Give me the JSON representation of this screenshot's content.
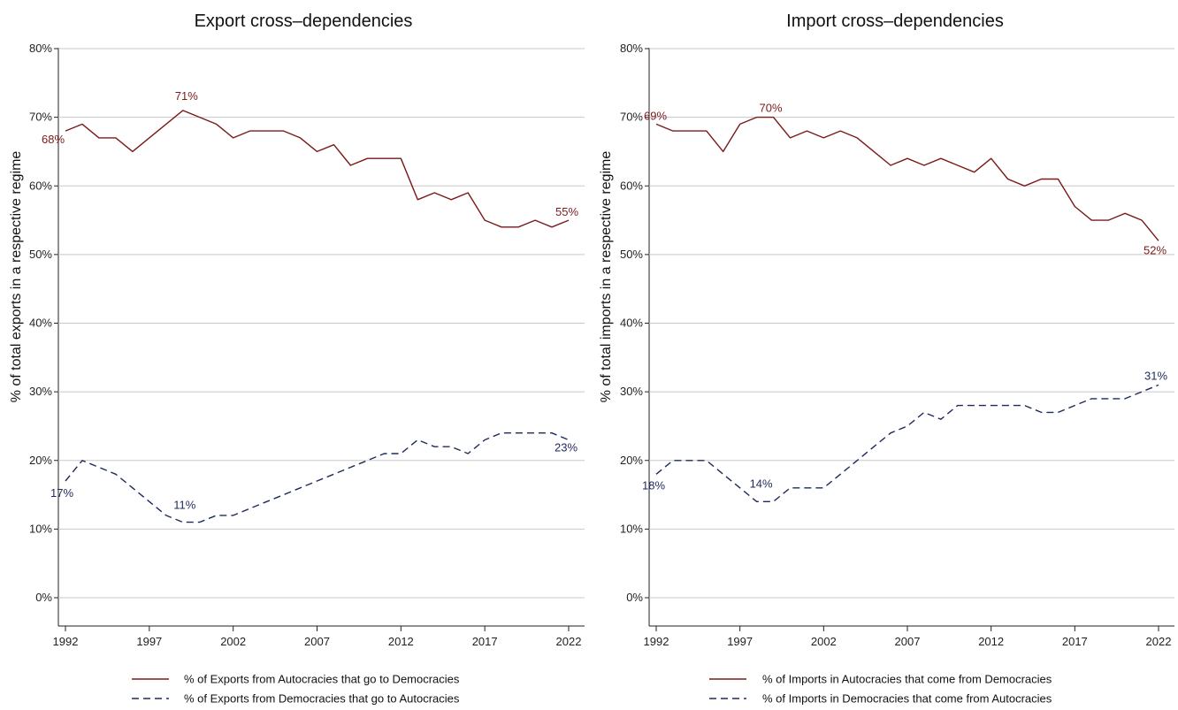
{
  "chart_data": [
    {
      "type": "line",
      "title": "Export cross–dependencies",
      "ylabel": "% of total exports in a respective regime",
      "xlabel": "",
      "ylim": [
        0,
        80
      ],
      "xlim": [
        1992,
        2022
      ],
      "y_ticks": [
        "0%",
        "10%",
        "20%",
        "30%",
        "40%",
        "50%",
        "60%",
        "70%",
        "80%"
      ],
      "x_ticks": [
        "1992",
        "1997",
        "2002",
        "2007",
        "2012",
        "2017",
        "2022"
      ],
      "grid": "horizontal",
      "legend_placement": "bottom",
      "x": [
        1992,
        1993,
        1994,
        1995,
        1996,
        1997,
        1998,
        1999,
        2000,
        2001,
        2002,
        2003,
        2004,
        2005,
        2006,
        2007,
        2008,
        2009,
        2010,
        2011,
        2012,
        2013,
        2014,
        2015,
        2016,
        2017,
        2018,
        2019,
        2020,
        2021,
        2022
      ],
      "series": [
        {
          "name": "% of Exports from Autocracies that go to Democracies",
          "color": "#7a1a1a",
          "dash": "solid",
          "values": [
            68,
            69,
            67,
            67,
            65,
            67,
            69,
            71,
            70,
            69,
            67,
            68,
            68,
            68,
            67,
            65,
            66,
            63,
            64,
            64,
            64,
            58,
            59,
            58,
            59,
            55,
            54,
            54,
            55,
            54,
            55
          ],
          "annotations": [
            {
              "x": 1992,
              "y": 68,
              "label": "68%"
            },
            {
              "x": 1999,
              "y": 71,
              "label": "71%"
            },
            {
              "x": 2022,
              "y": 55,
              "label": "55%"
            }
          ]
        },
        {
          "name": "% of Exports from Democracies that go to Autocracies",
          "color": "#1f2a5c",
          "dash": "dashed",
          "values": [
            17,
            20,
            19,
            18,
            16,
            14,
            12,
            11,
            11,
            12,
            12,
            13,
            14,
            15,
            16,
            17,
            18,
            19,
            20,
            21,
            21,
            23,
            22,
            22,
            21,
            23,
            24,
            24,
            24,
            24,
            23
          ],
          "annotations": [
            {
              "x": 1992,
              "y": 17,
              "label": "17%"
            },
            {
              "x": 1999,
              "y": 11,
              "label": "11%"
            },
            {
              "x": 2022,
              "y": 23,
              "label": "23%"
            }
          ]
        }
      ]
    },
    {
      "type": "line",
      "title": "Import cross–dependencies",
      "ylabel": "% of total imports in a respective regime",
      "xlabel": "",
      "ylim": [
        0,
        80
      ],
      "xlim": [
        1992,
        2022
      ],
      "y_ticks": [
        "0%",
        "10%",
        "20%",
        "30%",
        "40%",
        "50%",
        "60%",
        "70%",
        "80%"
      ],
      "x_ticks": [
        "1992",
        "1997",
        "2002",
        "2007",
        "2012",
        "2017",
        "2022"
      ],
      "grid": "horizontal",
      "legend_placement": "bottom",
      "x": [
        1992,
        1993,
        1994,
        1995,
        1996,
        1997,
        1998,
        1999,
        2000,
        2001,
        2002,
        2003,
        2004,
        2005,
        2006,
        2007,
        2008,
        2009,
        2010,
        2011,
        2012,
        2013,
        2014,
        2015,
        2016,
        2017,
        2018,
        2019,
        2020,
        2021,
        2022
      ],
      "series": [
        {
          "name": "% of Imports in Autocracies that come from Democracies",
          "color": "#7a1a1a",
          "dash": "solid",
          "values": [
            69,
            68,
            68,
            68,
            65,
            69,
            70,
            70,
            67,
            68,
            67,
            68,
            67,
            65,
            63,
            64,
            63,
            64,
            63,
            62,
            64,
            61,
            60,
            61,
            61,
            57,
            55,
            55,
            56,
            55,
            52
          ],
          "annotations": [
            {
              "x": 1992,
              "y": 69,
              "label": "69%"
            },
            {
              "x": 1999,
              "y": 70,
              "label": "70%"
            },
            {
              "x": 2022,
              "y": 52,
              "label": "52%"
            }
          ]
        },
        {
          "name": "% of Imports in Democracies that come from Autocracies",
          "color": "#1f2a5c",
          "dash": "dashed",
          "values": [
            18,
            20,
            20,
            20,
            18,
            16,
            14,
            14,
            16,
            16,
            16,
            18,
            20,
            22,
            24,
            25,
            27,
            26,
            28,
            28,
            28,
            28,
            28,
            27,
            27,
            28,
            29,
            29,
            29,
            30,
            31
          ],
          "annotations": [
            {
              "x": 1992,
              "y": 18,
              "label": "18%"
            },
            {
              "x": 1998,
              "y": 14,
              "label": "14%"
            },
            {
              "x": 2022,
              "y": 31,
              "label": "31%"
            }
          ]
        }
      ]
    }
  ]
}
